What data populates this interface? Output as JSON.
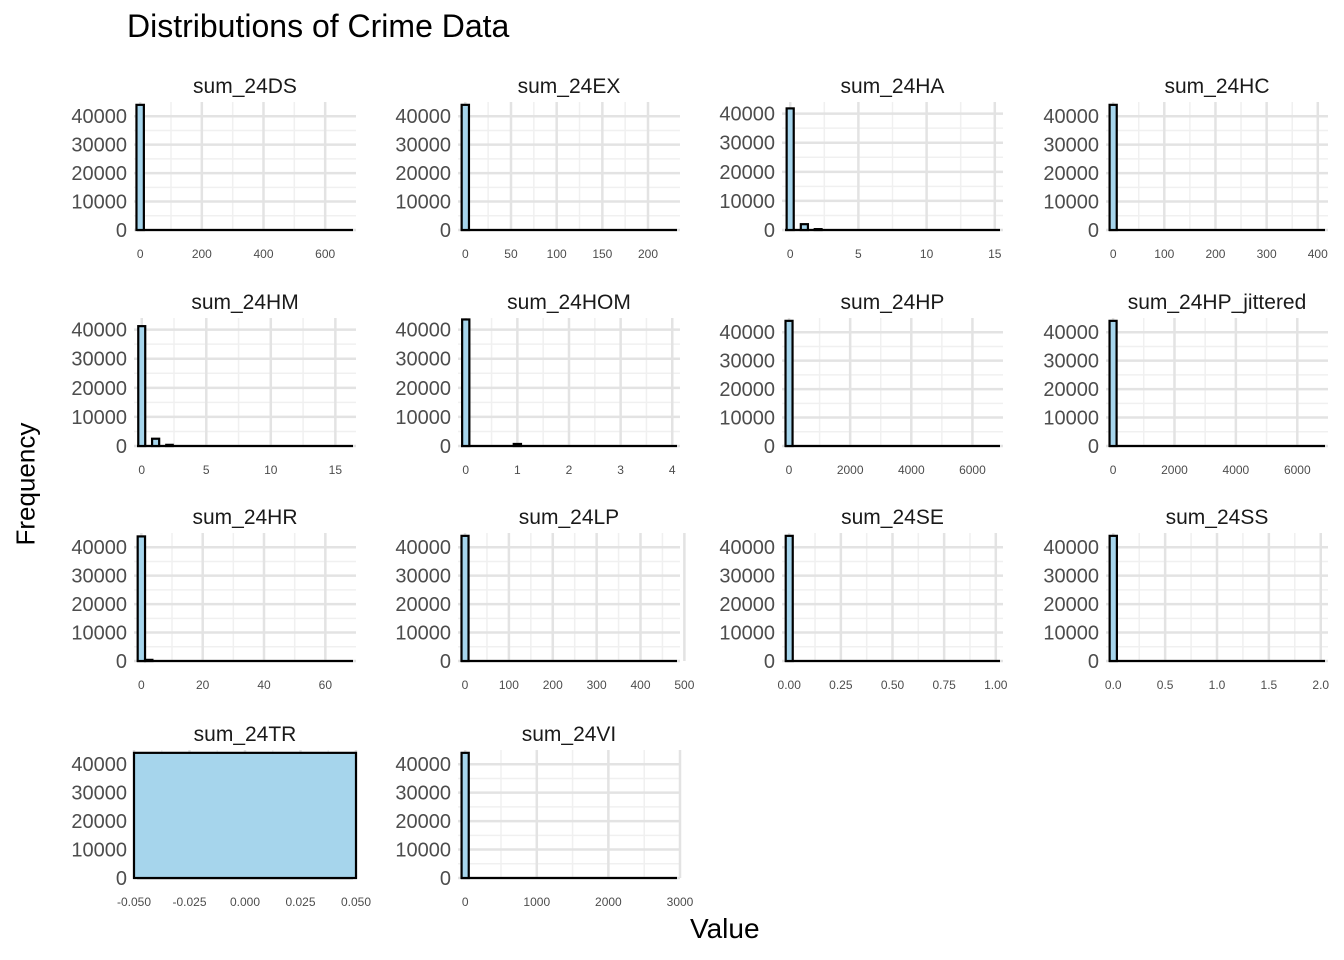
{
  "chart_data": {
    "type": "histogram-facets",
    "title": "Distributions of Crime Data",
    "xlabel": "Value",
    "ylabel": "Frequency",
    "fill_color": "#a6d5ec",
    "bar_border_color": "#000000",
    "grid": true,
    "panels": [
      {
        "name": "sum_24DS",
        "x_range": [
          -20,
          700
        ],
        "y_range": [
          0,
          45000
        ],
        "x_ticks": [
          "0",
          "200",
          "400",
          "600"
        ],
        "x_tick_values": [
          0,
          200,
          400,
          600
        ],
        "y_ticks": [
          "0",
          "10000",
          "20000",
          "30000",
          "40000"
        ],
        "y_tick_values": [
          0,
          10000,
          20000,
          30000,
          40000
        ],
        "bins": [
          {
            "x0": -12,
            "x1": 12,
            "count": 44000
          }
        ]
      },
      {
        "name": "sum_24EX",
        "x_range": [
          -8,
          235
        ],
        "y_range": [
          0,
          45000
        ],
        "x_ticks": [
          "0",
          "50",
          "100",
          "150",
          "200"
        ],
        "x_tick_values": [
          0,
          50,
          100,
          150,
          200
        ],
        "y_ticks": [
          "0",
          "10000",
          "20000",
          "30000",
          "40000"
        ],
        "y_tick_values": [
          0,
          10000,
          20000,
          30000,
          40000
        ],
        "bins": [
          {
            "x0": -4,
            "x1": 4,
            "count": 44000
          }
        ]
      },
      {
        "name": "sum_24HA",
        "x_range": [
          -0.6,
          15.6
        ],
        "y_range": [
          0,
          44000
        ],
        "x_ticks": [
          "0",
          "5",
          "10",
          "15"
        ],
        "x_tick_values": [
          0,
          5,
          10,
          15
        ],
        "y_ticks": [
          "0",
          "10000",
          "20000",
          "30000",
          "40000"
        ],
        "y_tick_values": [
          0,
          10000,
          20000,
          30000,
          40000
        ],
        "bins": [
          {
            "x0": -0.26,
            "x1": 0.26,
            "count": 41800
          },
          {
            "x0": 0.78,
            "x1": 1.3,
            "count": 2000
          },
          {
            "x0": 1.8,
            "x1": 2.3,
            "count": 300
          }
        ]
      },
      {
        "name": "sum_24HC",
        "x_range": [
          -14,
          420
        ],
        "y_range": [
          0,
          45000
        ],
        "x_ticks": [
          "0",
          "100",
          "200",
          "300",
          "400"
        ],
        "x_tick_values": [
          0,
          100,
          200,
          300,
          400
        ],
        "y_ticks": [
          "0",
          "10000",
          "20000",
          "30000",
          "40000"
        ],
        "y_tick_values": [
          0,
          10000,
          20000,
          30000,
          40000
        ],
        "bins": [
          {
            "x0": -7,
            "x1": 7,
            "count": 44000
          }
        ]
      },
      {
        "name": "sum_24HM",
        "x_range": [
          -0.6,
          16.6
        ],
        "y_range": [
          0,
          44000
        ],
        "x_ticks": [
          "0",
          "5",
          "10",
          "15"
        ],
        "x_tick_values": [
          0,
          5,
          10,
          15
        ],
        "y_ticks": [
          "0",
          "10000",
          "20000",
          "30000",
          "40000"
        ],
        "y_tick_values": [
          0,
          10000,
          20000,
          30000,
          40000
        ],
        "bins": [
          {
            "x0": -0.27,
            "x1": 0.27,
            "count": 41200
          },
          {
            "x0": 0.8,
            "x1": 1.35,
            "count": 2500
          },
          {
            "x0": 1.9,
            "x1": 2.4,
            "count": 400
          }
        ]
      },
      {
        "name": "sum_24HOM",
        "x_range": [
          -0.15,
          4.15
        ],
        "y_range": [
          0,
          44000
        ],
        "x_ticks": [
          "0",
          "1",
          "2",
          "3",
          "4"
        ],
        "x_tick_values": [
          0,
          1,
          2,
          3,
          4
        ],
        "y_ticks": [
          "0",
          "10000",
          "20000",
          "30000",
          "40000"
        ],
        "y_tick_values": [
          0,
          10000,
          20000,
          30000,
          40000
        ],
        "bins": [
          {
            "x0": -0.07,
            "x1": 0.07,
            "count": 43500
          },
          {
            "x0": 0.93,
            "x1": 1.07,
            "count": 700
          }
        ]
      },
      {
        "name": "sum_24HP",
        "x_range": [
          -230,
          7000
        ],
        "y_range": [
          0,
          45000
        ],
        "x_ticks": [
          "0",
          "2000",
          "4000",
          "6000"
        ],
        "x_tick_values": [
          0,
          2000,
          4000,
          6000
        ],
        "y_ticks": [
          "0",
          "10000",
          "20000",
          "30000",
          "40000"
        ],
        "y_tick_values": [
          0,
          10000,
          20000,
          30000,
          40000
        ],
        "bins": [
          {
            "x0": -115,
            "x1": 115,
            "count": 44000
          }
        ]
      },
      {
        "name": "sum_24HP_jittered",
        "x_range": [
          -230,
          7000
        ],
        "y_range": [
          0,
          45000
        ],
        "x_ticks": [
          "0",
          "2000",
          "4000",
          "6000"
        ],
        "x_tick_values": [
          0,
          2000,
          4000,
          6000
        ],
        "y_ticks": [
          "0",
          "10000",
          "20000",
          "30000",
          "40000"
        ],
        "y_tick_values": [
          0,
          10000,
          20000,
          30000,
          40000
        ],
        "bins": [
          {
            "x0": -115,
            "x1": 115,
            "count": 44000
          }
        ]
      },
      {
        "name": "sum_24HR",
        "x_range": [
          -2.4,
          70
        ],
        "y_range": [
          0,
          45000
        ],
        "x_ticks": [
          "0",
          "20",
          "40",
          "60"
        ],
        "x_tick_values": [
          0,
          20,
          40,
          60
        ],
        "y_ticks": [
          "0",
          "10000",
          "20000",
          "30000",
          "40000"
        ],
        "y_tick_values": [
          0,
          10000,
          20000,
          30000,
          40000
        ],
        "bins": [
          {
            "x0": -1.2,
            "x1": 1.2,
            "count": 43800
          },
          {
            "x0": 1.2,
            "x1": 3.6,
            "count": 400
          }
        ]
      },
      {
        "name": "sum_24LP",
        "x_range": [
          -16,
          490
        ],
        "y_range": [
          0,
          45000
        ],
        "x_ticks": [
          "0",
          "100",
          "200",
          "300",
          "400",
          "500"
        ],
        "x_tick_values": [
          0,
          100,
          200,
          300,
          400,
          500
        ],
        "y_ticks": [
          "0",
          "10000",
          "20000",
          "30000",
          "40000"
        ],
        "y_tick_values": [
          0,
          10000,
          20000,
          30000,
          40000
        ],
        "bins": [
          {
            "x0": -8,
            "x1": 8,
            "count": 44000
          }
        ]
      },
      {
        "name": "sum_24SE",
        "x_range": [
          -0.035,
          1.035
        ],
        "y_range": [
          0,
          45000
        ],
        "x_ticks": [
          "0.00",
          "0.25",
          "0.50",
          "0.75",
          "1.00"
        ],
        "x_tick_values": [
          0,
          0.25,
          0.5,
          0.75,
          1
        ],
        "y_ticks": [
          "0",
          "10000",
          "20000",
          "30000",
          "40000"
        ],
        "y_tick_values": [
          0,
          10000,
          20000,
          30000,
          40000
        ],
        "bins": [
          {
            "x0": -0.017,
            "x1": 0.017,
            "count": 44000
          }
        ]
      },
      {
        "name": "sum_24SS",
        "x_range": [
          -0.07,
          2.07
        ],
        "y_range": [
          0,
          45000
        ],
        "x_ticks": [
          "0.0",
          "0.5",
          "1.0",
          "1.5",
          "2.0"
        ],
        "x_tick_values": [
          0,
          0.5,
          1,
          1.5,
          2
        ],
        "y_ticks": [
          "0",
          "10000",
          "20000",
          "30000",
          "40000"
        ],
        "y_tick_values": [
          0,
          10000,
          20000,
          30000,
          40000
        ],
        "bins": [
          {
            "x0": -0.035,
            "x1": 0.035,
            "count": 44000
          }
        ]
      },
      {
        "name": "sum_24TR",
        "x_range": [
          -0.05,
          0.05
        ],
        "y_range": [
          0,
          45000
        ],
        "x_ticks": [
          "-0.050",
          "-0.025",
          "0.000",
          "0.025",
          "0.050"
        ],
        "x_tick_values": [
          -0.05,
          -0.025,
          0,
          0.025,
          0.05
        ],
        "y_ticks": [
          "0",
          "10000",
          "20000",
          "30000",
          "40000"
        ],
        "y_tick_values": [
          0,
          10000,
          20000,
          30000,
          40000
        ],
        "bins": [
          {
            "x0": -0.05,
            "x1": 0.05,
            "count": 44000
          }
        ]
      },
      {
        "name": "sum_24VI",
        "x_range": [
          -100,
          3000
        ],
        "y_range": [
          0,
          45000
        ],
        "x_ticks": [
          "0",
          "1000",
          "2000",
          "3000"
        ],
        "x_tick_values": [
          0,
          1000,
          2000,
          3000
        ],
        "y_ticks": [
          "0",
          "10000",
          "20000",
          "30000",
          "40000"
        ],
        "y_tick_values": [
          0,
          10000,
          20000,
          30000,
          40000
        ],
        "bins": [
          {
            "x0": -50,
            "x1": 50,
            "count": 44000
          }
        ]
      }
    ]
  }
}
